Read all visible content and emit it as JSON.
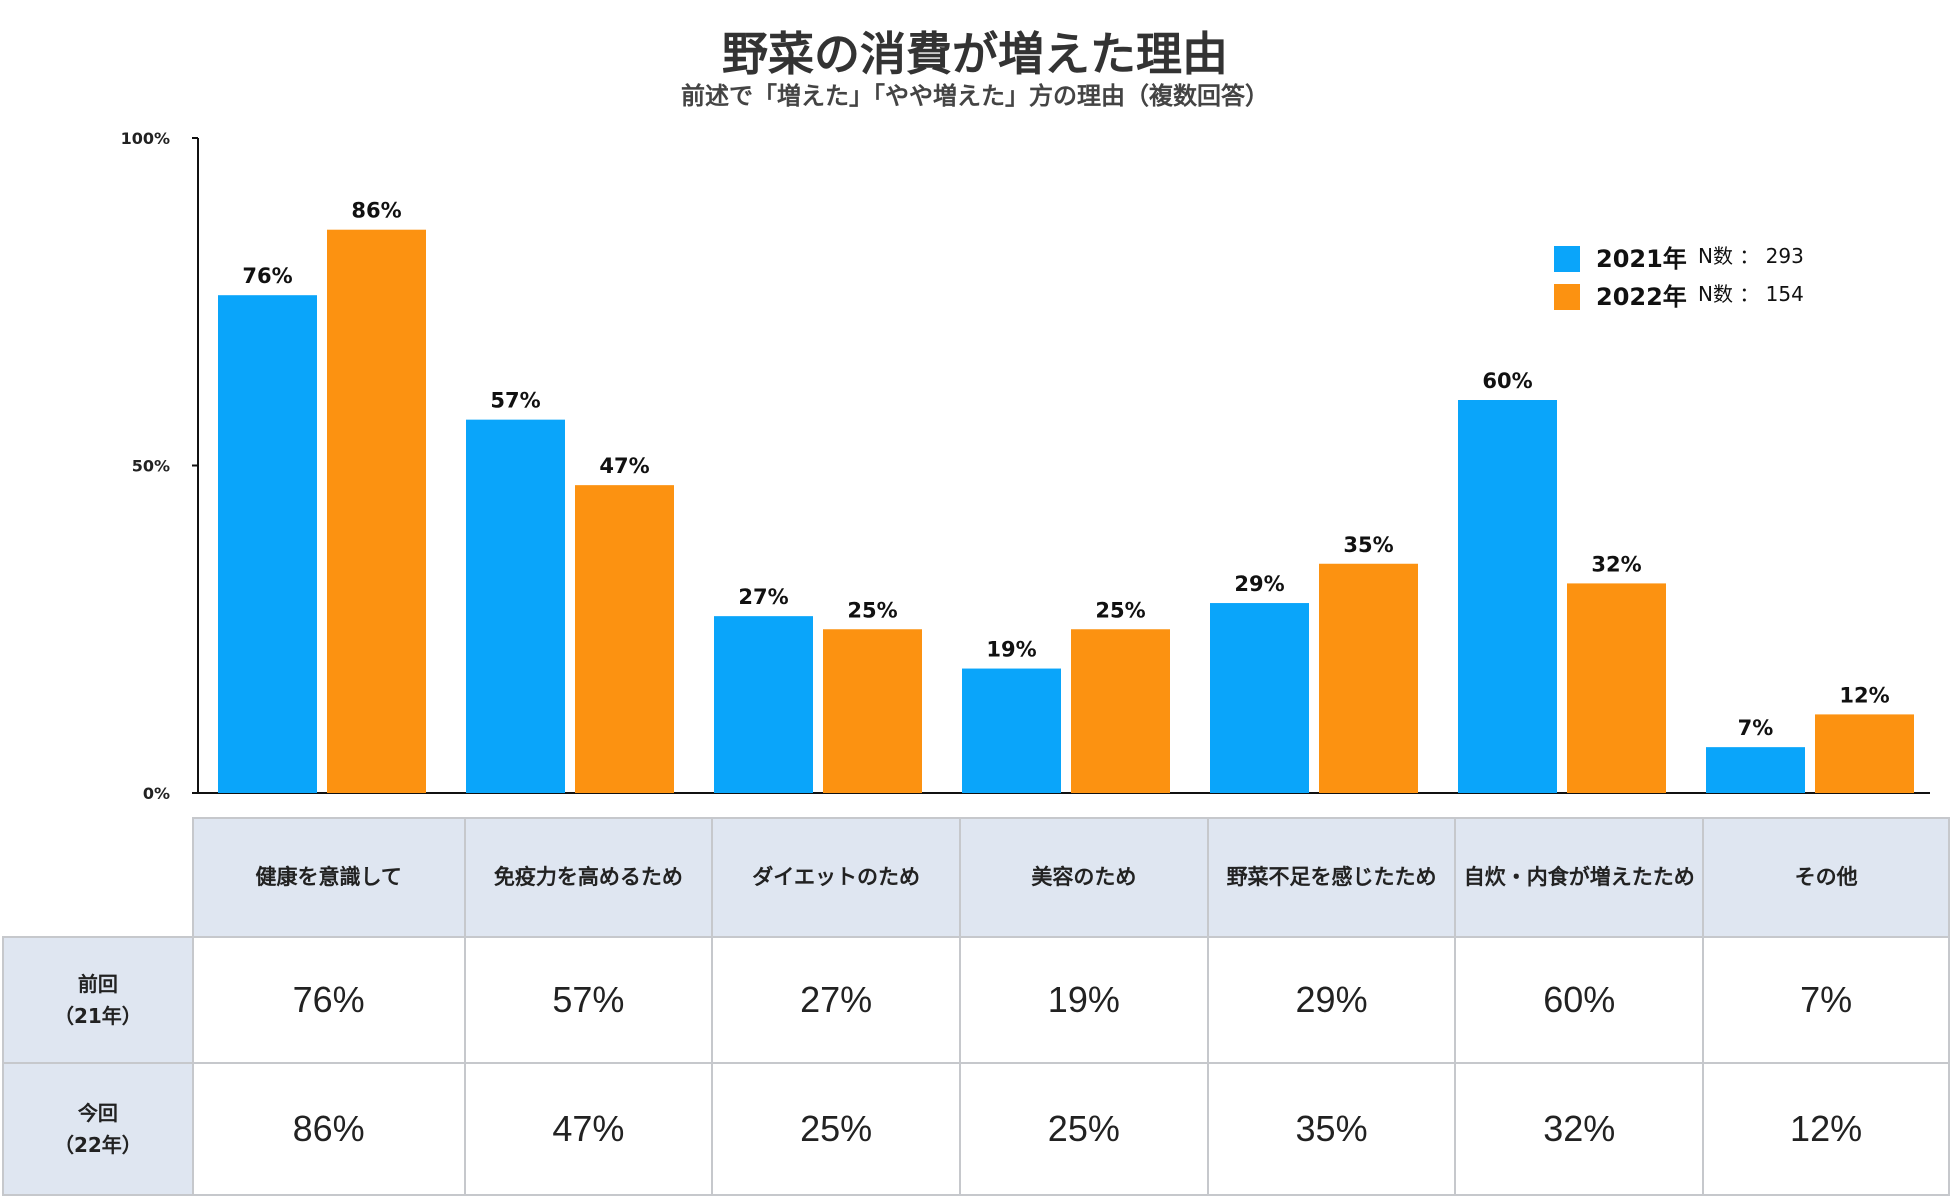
{
  "chart_data": {
    "type": "bar",
    "title": "野菜の消費が増えた理由",
    "subtitle": "前述で「増えた」「やや増えた」方の理由（複数回答）",
    "categories": [
      "健康を意識して",
      "免疫力を高めるため",
      "ダイエットのため",
      "美容のため",
      "野菜不足を感じたため",
      "自炊・内食が増えたため",
      "その他"
    ],
    "series": [
      {
        "name": "2021年",
        "n_label": "N数 ： 293",
        "color": "#0aa5fa",
        "values": [
          76,
          57,
          27,
          19,
          29,
          60,
          7
        ]
      },
      {
        "name": "2022年",
        "n_label": "N数 ： 154",
        "color": "#fc9211",
        "values": [
          86,
          47,
          25,
          25,
          35,
          32,
          12
        ]
      }
    ],
    "yticks": [
      "0%",
      "50%",
      "100%"
    ],
    "ylim": [
      0,
      100
    ],
    "legend": "top-right"
  },
  "table": {
    "headers": [
      "健康を意識して",
      "免疫力を高めるため",
      "ダイエットのため",
      "美容のため",
      "野菜不足を感じたため",
      "自炊・内食が増えたため",
      "その他"
    ],
    "rows": [
      {
        "label_line1": "前回",
        "label_line2": "（21年）",
        "cells": [
          "76%",
          "57%",
          "27%",
          "19%",
          "29%",
          "60%",
          "7%"
        ]
      },
      {
        "label_line1": "今回",
        "label_line2": "（22年）",
        "cells": [
          "86%",
          "47%",
          "25%",
          "25%",
          "35%",
          "32%",
          "12%"
        ]
      }
    ]
  }
}
